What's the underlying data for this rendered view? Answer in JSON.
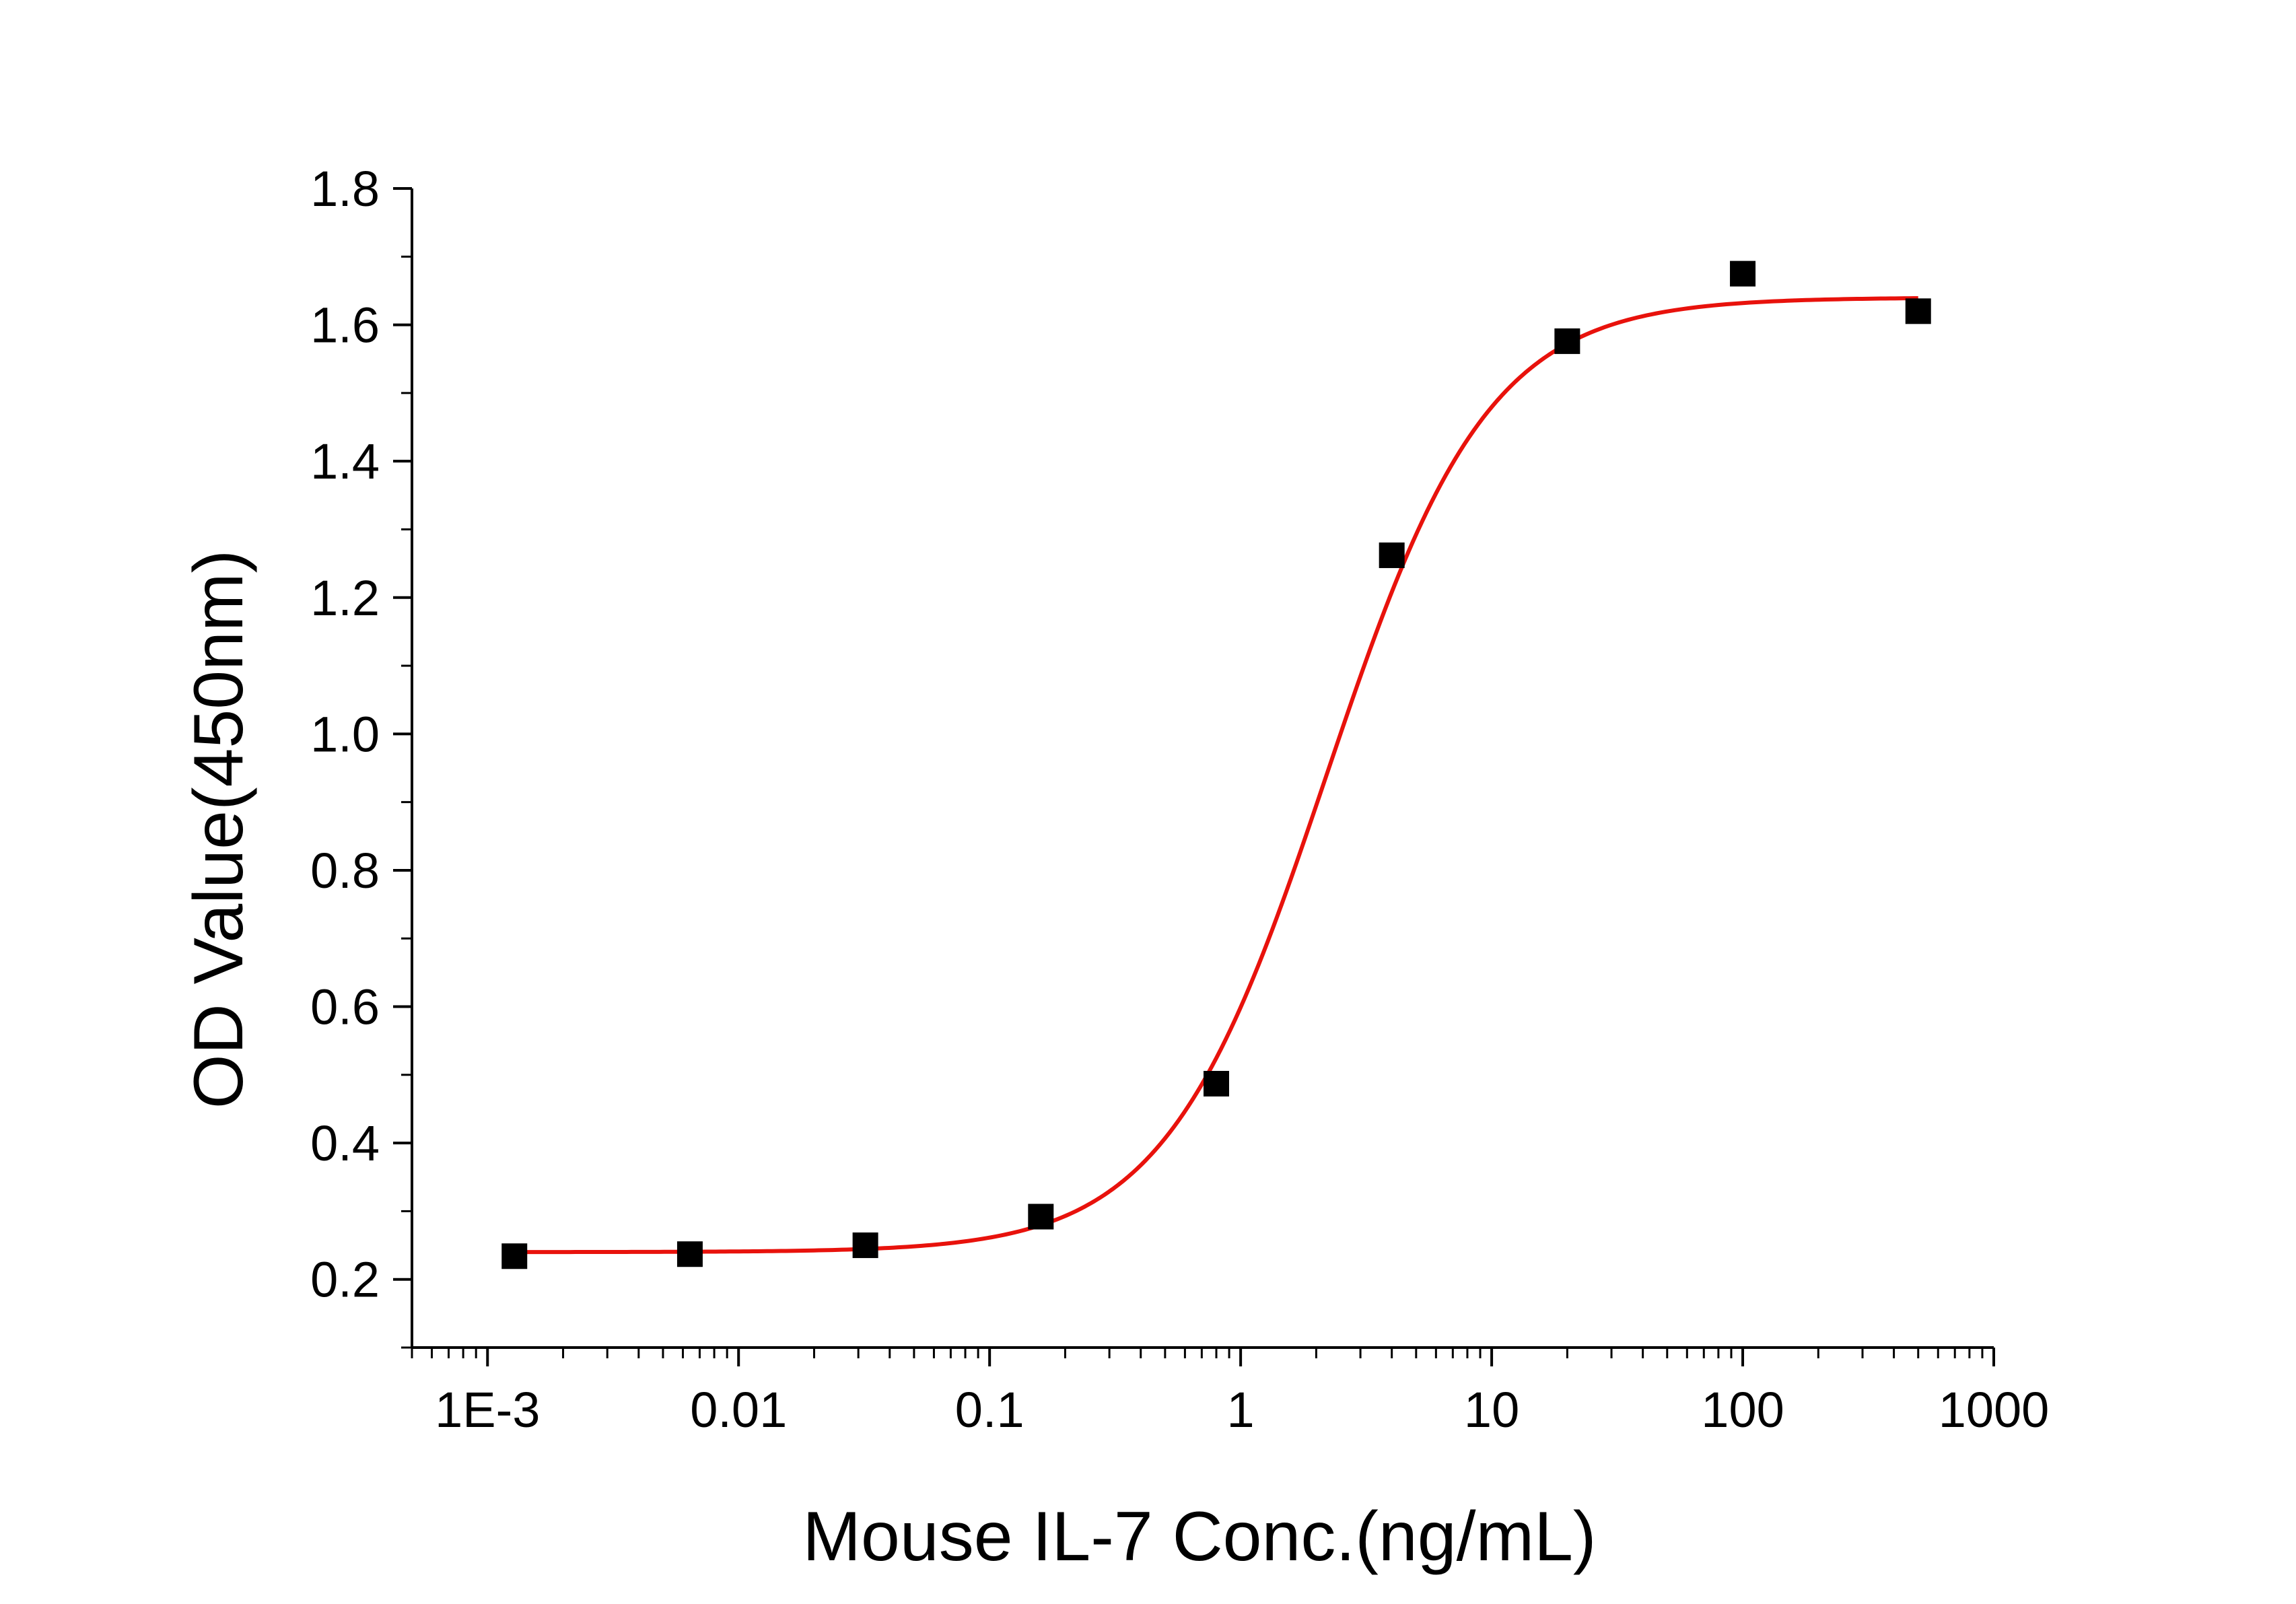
{
  "chart_data": {
    "type": "scatter",
    "title": "",
    "xlabel": "Mouse IL-7 Conc.(ng/mL)",
    "ylabel": "OD Value(450nm)",
    "x_scale": "log",
    "xlim": [
      0.0005,
      1000
    ],
    "ylim": [
      0.1,
      1.8
    ],
    "x_ticks": [
      0.001,
      0.01,
      0.1,
      1,
      10,
      100,
      1000
    ],
    "x_tick_labels": [
      "1E-3",
      "0.01",
      "0.1",
      "1",
      "10",
      "100",
      "1000"
    ],
    "y_ticks": [
      0.2,
      0.4,
      0.6,
      0.8,
      1.0,
      1.2,
      1.4,
      1.6,
      1.8
    ],
    "y_tick_labels": [
      "0.2",
      "0.4",
      "0.6",
      "0.8",
      "1.0",
      "1.2",
      "1.4",
      "1.6",
      "1.8"
    ],
    "grid": false,
    "legend": "none",
    "series": [
      {
        "type": "scatter",
        "color": "#000000",
        "marker": "square",
        "points": [
          {
            "x": 0.00128,
            "y": 0.234
          },
          {
            "x": 0.0064,
            "y": 0.237
          },
          {
            "x": 0.032,
            "y": 0.25
          },
          {
            "x": 0.16,
            "y": 0.292
          },
          {
            "x": 0.8,
            "y": 0.487
          },
          {
            "x": 4,
            "y": 1.262
          },
          {
            "x": 20,
            "y": 1.576
          },
          {
            "x": 100,
            "y": 1.675
          },
          {
            "x": 500,
            "y": 1.62
          }
        ]
      },
      {
        "type": "line",
        "color": "#e8120c",
        "fit": "four-parameter logistic",
        "bottom": 0.24,
        "top": 1.64,
        "ec50": 2.2,
        "hill": 1.35,
        "x_range": [
          0.00128,
          500
        ]
      }
    ]
  }
}
